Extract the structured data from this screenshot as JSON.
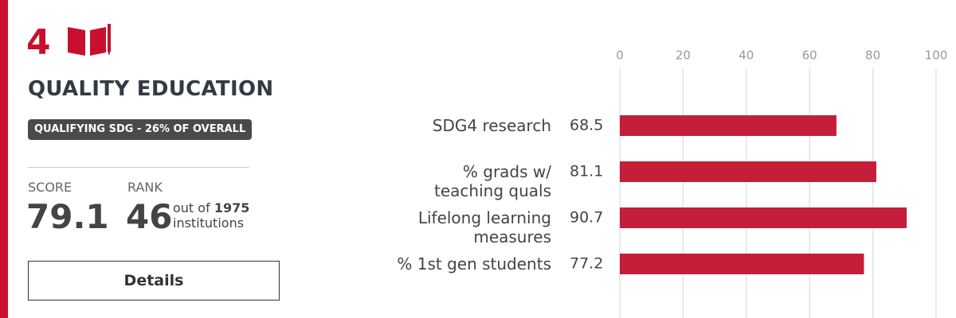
{
  "goal": {
    "number": 4,
    "title": "QUALITY EDUCATION",
    "badge": "QUALIFYING SDG - 26% OF OVERALL"
  },
  "score": {
    "label": "SCORE",
    "value": 79.1
  },
  "rank": {
    "label": "RANK",
    "value": 46,
    "out_of": "out of",
    "total": 1975,
    "unit": "institutions"
  },
  "button": "Details",
  "chart_data": {
    "type": "bar",
    "orientation": "horizontal",
    "categories": [
      "SDG4 research",
      "% grads w/ teaching quals",
      "Lifelong learning measures",
      "% 1st gen students"
    ],
    "values": [
      68.5,
      81.1,
      90.7,
      77.2
    ],
    "color": "#c41e3a",
    "xlim": [
      0,
      100
    ],
    "xticks": [
      0,
      20,
      40,
      60,
      80,
      100
    ],
    "grid": true
  }
}
